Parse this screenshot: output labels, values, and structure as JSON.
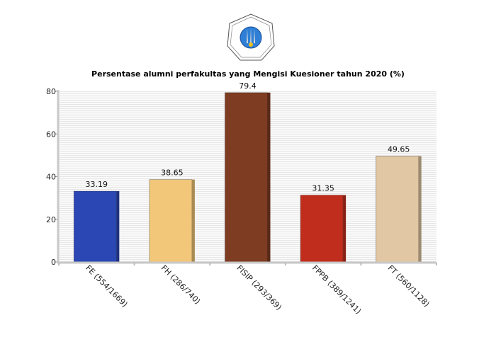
{
  "chart_data": {
    "type": "bar",
    "title": "Persentase alumni perfakultas yang Mengisi Kuesioner tahun 2020 (%)",
    "xlabel": "",
    "ylabel": "",
    "categories": [
      "FE (554/1669)",
      "FH (286/740)",
      "FISIP (293/369)",
      "FPPB (389/1241)",
      "FT (560/1128)"
    ],
    "values": [
      33.19,
      38.65,
      79.4,
      31.35,
      49.65
    ],
    "data_labels": [
      "33.19",
      "38.65",
      "79.4",
      "31.35",
      "49.65"
    ],
    "colors": [
      "#2b47b3",
      "#f2c779",
      "#7e3d22",
      "#c12d1d",
      "#e1c7a3"
    ],
    "ylim": [
      0,
      80
    ],
    "yticks": [
      "0",
      "20",
      "40",
      "60",
      "80"
    ],
    "grid": true,
    "legend": "none"
  },
  "logo": {
    "name": "university-seal-logo"
  }
}
